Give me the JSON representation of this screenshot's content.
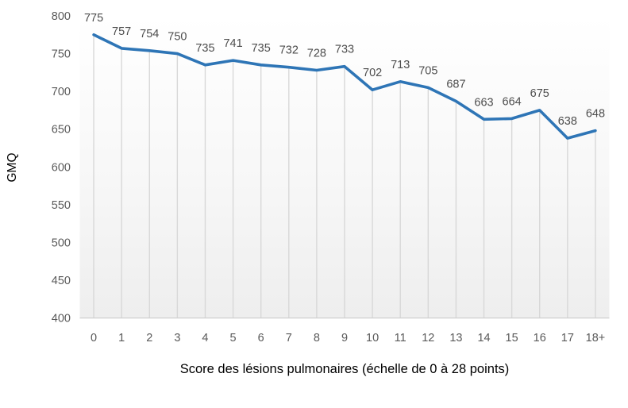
{
  "chart_data": {
    "type": "line",
    "title": "",
    "categories": [
      "0",
      "1",
      "2",
      "3",
      "4",
      "5",
      "6",
      "7",
      "8",
      "9",
      "10",
      "11",
      "12",
      "13",
      "14",
      "15",
      "16",
      "17",
      "18+"
    ],
    "values": [
      775,
      757,
      754,
      750,
      735,
      741,
      735,
      732,
      728,
      733,
      702,
      713,
      705,
      687,
      663,
      664,
      675,
      638,
      648
    ],
    "xlabel": "Score des lésions pulmonaires (échelle de 0 à 28 points)",
    "ylabel": "GMQ",
    "ylim": [
      400,
      800
    ],
    "yticks": [
      400,
      450,
      500,
      550,
      600,
      650,
      700,
      750,
      800
    ],
    "grid": "vertical-drop-lines-only",
    "legend_position": "none",
    "data_labels": "above-points",
    "colors": {
      "line": "#2E75B6",
      "drop_line": "#d8d8d8",
      "axis_line": "#cfcfcf",
      "tick_label": "#5a5a5a",
      "data_label": "#4d4d4d",
      "axis_title": "#000000",
      "plot_bg_top": "#ffffff",
      "plot_bg_bottom": "#eeeeee"
    }
  }
}
